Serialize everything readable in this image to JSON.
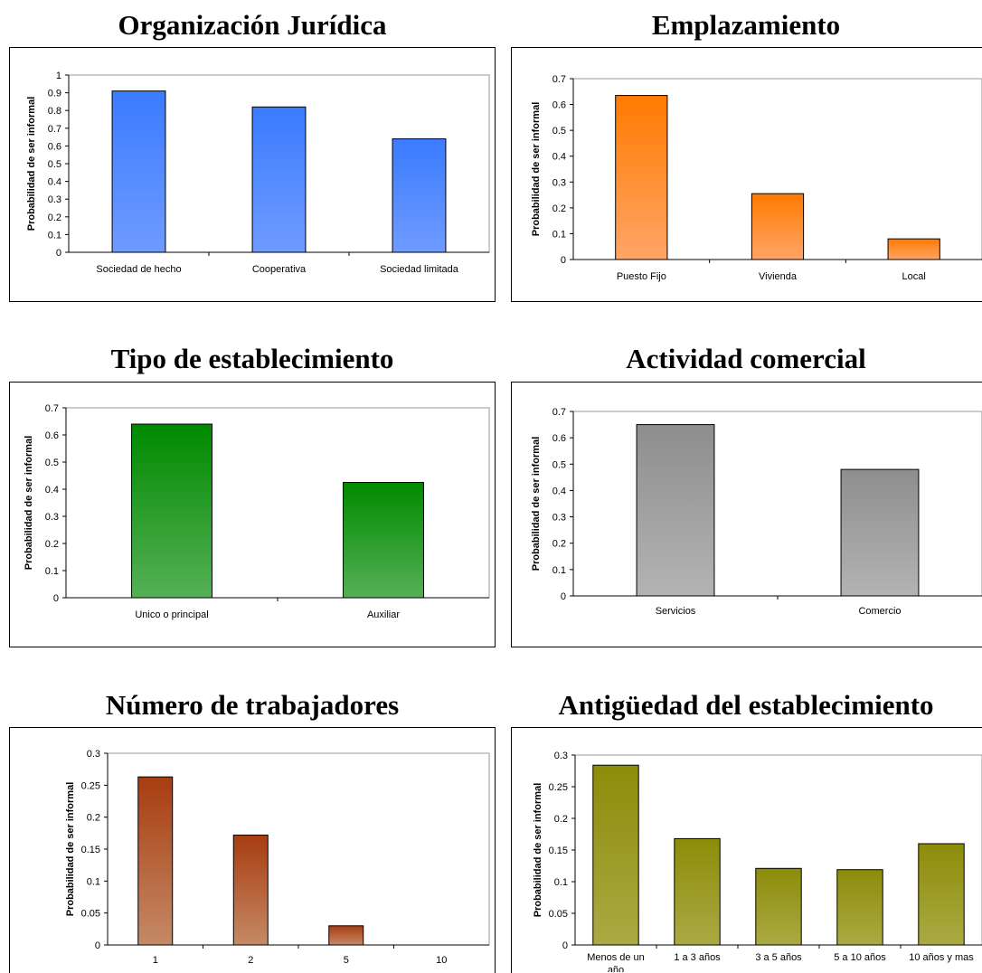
{
  "chart_data": [
    {
      "type": "bar",
      "title": "Organización Jurídica",
      "ylabel": "Probabilidad de ser informal",
      "xlabel": "",
      "categories": [
        "Sociedad de hecho",
        "Cooperativa",
        "Sociedad limitada"
      ],
      "values": [
        0.91,
        0.82,
        0.64
      ],
      "ylim": [
        0,
        1
      ],
      "yticks": [
        "0",
        "0.1",
        "0.2",
        "0.3",
        "0.4",
        "0.5",
        "0.6",
        "0.7",
        "0.8",
        "0.9",
        "1"
      ],
      "color_top": "#3a7bff",
      "color_bottom": "#6f9bff"
    },
    {
      "type": "bar",
      "title": "Emplazamiento",
      "ylabel": "Probabilidad de ser informal",
      "xlabel": "",
      "categories": [
        "Puesto Fijo",
        "Vivienda",
        "Local"
      ],
      "values": [
        0.635,
        0.255,
        0.08
      ],
      "ylim": [
        0,
        0.7
      ],
      "yticks": [
        "0",
        "0.1",
        "0.2",
        "0.3",
        "0.4",
        "0.5",
        "0.6",
        "0.7"
      ],
      "color_top": "#ff7a00",
      "color_bottom": "#ffa566"
    },
    {
      "type": "bar",
      "title": "Tipo de establecimiento",
      "ylabel": "Probabilidad de ser informal",
      "xlabel": "",
      "categories": [
        "Unico o principal",
        "Auxiliar"
      ],
      "values": [
        0.64,
        0.425
      ],
      "ylim": [
        0,
        0.7
      ],
      "yticks": [
        "0",
        "0.1",
        "0.2",
        "0.3",
        "0.4",
        "0.5",
        "0.6",
        "0.7"
      ],
      "color_top": "#008a00",
      "color_bottom": "#55b055"
    },
    {
      "type": "bar",
      "title": "Actividad comercial",
      "ylabel": "Probabilidad de ser informal",
      "xlabel": "",
      "categories": [
        "Servicios",
        "Comercio"
      ],
      "values": [
        0.65,
        0.48
      ],
      "ylim": [
        0,
        0.7
      ],
      "yticks": [
        "0",
        "0.1",
        "0.2",
        "0.3",
        "0.4",
        "0.5",
        "0.6",
        "0.7"
      ],
      "color_top": "#8e8e8e",
      "color_bottom": "#b3b3b3"
    },
    {
      "type": "bar",
      "title": "Número de trabajadores",
      "ylabel": "Probabilidad de ser informal",
      "xlabel": "",
      "categories": [
        "1",
        "2",
        "5",
        "10"
      ],
      "values": [
        0.263,
        0.172,
        0.03,
        0
      ],
      "ylim": [
        0,
        0.3
      ],
      "yticks": [
        "0",
        "0.05",
        "0.1",
        "0.15",
        "0.2",
        "0.25",
        "0.3"
      ],
      "color_top": "#a83c10",
      "color_bottom": "#c48a66"
    },
    {
      "type": "bar",
      "title": "Antigüedad del establecimiento",
      "ylabel": "Probabilidad de ser informal",
      "xlabel": "",
      "categories": [
        "Menos de un año",
        "1 a 3 años",
        "3 a 5 años",
        "5 a 10 años",
        "10 años y mas"
      ],
      "values": [
        0.284,
        0.168,
        0.121,
        0.119,
        0.16
      ],
      "ylim": [
        0,
        0.3
      ],
      "yticks": [
        "0",
        "0.05",
        "0.1",
        "0.15",
        "0.2",
        "0.25",
        "0.3"
      ],
      "color_top": "#8c8c0a",
      "color_bottom": "#aaaa44"
    }
  ]
}
